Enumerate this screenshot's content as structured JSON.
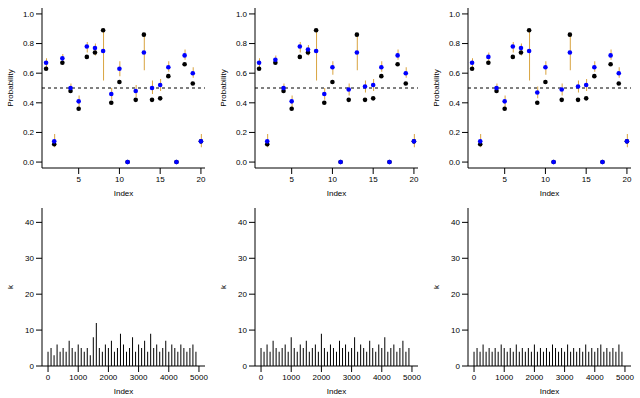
{
  "chart_data": [
    {
      "type": "scatter",
      "x_label": "Index",
      "y_label": "Probability",
      "x": [
        1,
        2,
        3,
        4,
        5,
        6,
        7,
        8,
        9,
        10,
        11,
        12,
        13,
        14,
        15,
        16,
        17,
        18,
        19,
        20
      ],
      "xlim": [
        0.5,
        20.5
      ],
      "xticks": [
        5,
        10,
        15,
        20
      ],
      "ylim": [
        -0.04,
        1.04
      ],
      "yticks": [
        {
          "value": 0,
          "label": "0.0"
        },
        {
          "value": 0.2,
          "label": "0.2"
        },
        {
          "value": 0.4,
          "label": "0.4"
        },
        {
          "value": 0.6,
          "label": "0.6"
        },
        {
          "value": 0.8,
          "label": "0.8"
        },
        {
          "value": 1,
          "label": "1.0"
        }
      ],
      "reference_line": 0.5,
      "series": [
        {
          "color": "#000000",
          "values": [
            0.63,
            0.12,
            0.67,
            0.48,
            0.36,
            0.71,
            0.74,
            0.89,
            0.4,
            0.54,
            0.0,
            0.42,
            0.86,
            0.42,
            0.43,
            0.58,
            0.0,
            0.66,
            0.53,
            0.14
          ]
        },
        {
          "color": "#0000ff",
          "values": [
            0.67,
            0.14,
            0.7,
            0.5,
            0.41,
            0.78,
            0.77,
            0.75,
            0.46,
            0.63,
            0.0,
            0.48,
            0.74,
            0.5,
            0.52,
            0.64,
            0.0,
            0.72,
            0.6,
            0.14
          ],
          "error_low": [
            0.63,
            0.1,
            0.66,
            0.47,
            0.36,
            0.74,
            0.72,
            0.55,
            0.42,
            0.58,
            0.0,
            0.44,
            0.62,
            0.46,
            0.48,
            0.61,
            0.0,
            0.69,
            0.57,
            0.1
          ],
          "error_high": [
            0.7,
            0.19,
            0.73,
            0.53,
            0.45,
            0.81,
            0.8,
            0.89,
            0.5,
            0.68,
            0.0,
            0.52,
            0.86,
            0.55,
            0.56,
            0.68,
            0.0,
            0.76,
            0.64,
            0.19
          ]
        }
      ]
    },
    {
      "type": "scatter",
      "x_label": "Index",
      "y_label": "Probability",
      "x": [
        1,
        2,
        3,
        4,
        5,
        6,
        7,
        8,
        9,
        10,
        11,
        12,
        13,
        14,
        15,
        16,
        17,
        18,
        19,
        20
      ],
      "xlim": [
        0.5,
        20.5
      ],
      "xticks": [
        5,
        10,
        15,
        20
      ],
      "ylim": [
        -0.04,
        1.04
      ],
      "yticks": [
        {
          "value": 0,
          "label": "0.0"
        },
        {
          "value": 0.2,
          "label": "0.2"
        },
        {
          "value": 0.4,
          "label": "0.4"
        },
        {
          "value": 0.6,
          "label": "0.6"
        },
        {
          "value": 0.8,
          "label": "0.8"
        },
        {
          "value": 1,
          "label": "1.0"
        }
      ],
      "reference_line": 0.5,
      "series": [
        {
          "color": "#000000",
          "values": [
            0.63,
            0.12,
            0.67,
            0.48,
            0.36,
            0.71,
            0.74,
            0.89,
            0.4,
            0.54,
            0.0,
            0.42,
            0.86,
            0.42,
            0.43,
            0.58,
            0.0,
            0.66,
            0.53,
            0.14
          ]
        },
        {
          "color": "#0000ff",
          "values": [
            0.67,
            0.14,
            0.69,
            0.5,
            0.41,
            0.78,
            0.76,
            0.75,
            0.46,
            0.64,
            0.0,
            0.49,
            0.74,
            0.51,
            0.52,
            0.64,
            0.0,
            0.72,
            0.6,
            0.14
          ],
          "error_low": [
            0.63,
            0.1,
            0.66,
            0.47,
            0.36,
            0.74,
            0.72,
            0.55,
            0.42,
            0.59,
            0.0,
            0.45,
            0.62,
            0.47,
            0.48,
            0.61,
            0.0,
            0.69,
            0.57,
            0.1
          ],
          "error_high": [
            0.7,
            0.19,
            0.72,
            0.53,
            0.45,
            0.81,
            0.79,
            0.89,
            0.5,
            0.68,
            0.0,
            0.53,
            0.86,
            0.55,
            0.56,
            0.68,
            0.0,
            0.76,
            0.64,
            0.19
          ]
        }
      ]
    },
    {
      "type": "scatter",
      "x_label": "Index",
      "y_label": "Probability",
      "x": [
        1,
        2,
        3,
        4,
        5,
        6,
        7,
        8,
        9,
        10,
        11,
        12,
        13,
        14,
        15,
        16,
        17,
        18,
        19,
        20
      ],
      "xlim": [
        0.5,
        20.5
      ],
      "xticks": [
        5,
        10,
        15,
        20
      ],
      "ylim": [
        -0.04,
        1.04
      ],
      "yticks": [
        {
          "value": 0,
          "label": "0.0"
        },
        {
          "value": 0.2,
          "label": "0.2"
        },
        {
          "value": 0.4,
          "label": "0.4"
        },
        {
          "value": 0.6,
          "label": "0.6"
        },
        {
          "value": 0.8,
          "label": "0.8"
        },
        {
          "value": 1,
          "label": "1.0"
        }
      ],
      "reference_line": 0.5,
      "series": [
        {
          "color": "#000000",
          "values": [
            0.63,
            0.12,
            0.67,
            0.48,
            0.36,
            0.71,
            0.74,
            0.89,
            0.4,
            0.54,
            0.0,
            0.42,
            0.86,
            0.42,
            0.43,
            0.58,
            0.0,
            0.66,
            0.53,
            0.14
          ]
        },
        {
          "color": "#0000ff",
          "values": [
            0.67,
            0.14,
            0.71,
            0.5,
            0.41,
            0.78,
            0.77,
            0.75,
            0.47,
            0.64,
            0.0,
            0.49,
            0.74,
            0.51,
            0.52,
            0.64,
            0.0,
            0.72,
            0.6,
            0.14
          ],
          "error_low": [
            0.63,
            0.1,
            0.67,
            0.47,
            0.36,
            0.74,
            0.72,
            0.55,
            0.43,
            0.59,
            0.0,
            0.45,
            0.62,
            0.47,
            0.48,
            0.61,
            0.0,
            0.69,
            0.57,
            0.1
          ],
          "error_high": [
            0.7,
            0.19,
            0.74,
            0.53,
            0.45,
            0.81,
            0.8,
            0.89,
            0.51,
            0.68,
            0.0,
            0.53,
            0.86,
            0.55,
            0.56,
            0.68,
            0.0,
            0.76,
            0.64,
            0.19
          ]
        }
      ]
    },
    {
      "type": "bar",
      "x_label": "Index",
      "y_label": "k",
      "color": "#000000",
      "x": [
        0,
        100,
        200,
        300,
        400,
        500,
        600,
        700,
        800,
        900,
        1000,
        1100,
        1200,
        1300,
        1400,
        1500,
        1600,
        1700,
        1800,
        1900,
        2000,
        2100,
        2200,
        2300,
        2400,
        2500,
        2600,
        2700,
        2800,
        2900,
        3000,
        3100,
        3200,
        3300,
        3400,
        3500,
        3600,
        3700,
        3800,
        3900,
        4000,
        4100,
        4200,
        4300,
        4400,
        4500,
        4600,
        4700,
        4800,
        4900
      ],
      "xlim": [
        -200,
        5200
      ],
      "xticks": [
        0,
        1000,
        2000,
        3000,
        4000,
        5000
      ],
      "ylim": [
        0,
        44
      ],
      "yticks": [
        0,
        10,
        20,
        30,
        40
      ],
      "values": [
        4,
        5,
        3,
        6,
        4,
        5,
        4,
        7,
        5,
        4,
        6,
        5,
        4,
        5,
        3,
        8,
        12,
        5,
        4,
        6,
        5,
        7,
        4,
        5,
        9,
        6,
        4,
        5,
        8,
        4,
        6,
        5,
        7,
        4,
        9,
        5,
        6,
        4,
        5,
        7,
        4,
        6,
        5,
        4,
        6,
        5,
        4,
        5,
        6,
        4
      ]
    },
    {
      "type": "bar",
      "x_label": "Index",
      "y_label": "k",
      "color": "#000000",
      "x": [
        0,
        100,
        200,
        300,
        400,
        500,
        600,
        700,
        800,
        900,
        1000,
        1100,
        1200,
        1300,
        1400,
        1500,
        1600,
        1700,
        1800,
        1900,
        2000,
        2100,
        2200,
        2300,
        2400,
        2500,
        2600,
        2700,
        2800,
        2900,
        3000,
        3100,
        3200,
        3300,
        3400,
        3500,
        3600,
        3700,
        3800,
        3900,
        4000,
        4100,
        4200,
        4300,
        4400,
        4500,
        4600,
        4700,
        4800,
        4900
      ],
      "xlim": [
        -200,
        5200
      ],
      "xticks": [
        0,
        1000,
        2000,
        3000,
        4000,
        5000
      ],
      "ylim": [
        0,
        44
      ],
      "yticks": [
        0,
        10,
        20,
        30,
        40
      ],
      "values": [
        5,
        4,
        6,
        4,
        7,
        5,
        4,
        5,
        6,
        4,
        8,
        5,
        4,
        6,
        5,
        7,
        4,
        5,
        6,
        4,
        9,
        5,
        4,
        6,
        5,
        4,
        7,
        5,
        6,
        4,
        5,
        8,
        4,
        6,
        5,
        4,
        7,
        5,
        4,
        6,
        5,
        8,
        4,
        5,
        6,
        4,
        5,
        7,
        4,
        5
      ]
    },
    {
      "type": "bar",
      "x_label": "Index",
      "y_label": "k",
      "color": "#000000",
      "x": [
        0,
        100,
        200,
        300,
        400,
        500,
        600,
        700,
        800,
        900,
        1000,
        1100,
        1200,
        1300,
        1400,
        1500,
        1600,
        1700,
        1800,
        1900,
        2000,
        2100,
        2200,
        2300,
        2400,
        2500,
        2600,
        2700,
        2800,
        2900,
        3000,
        3100,
        3200,
        3300,
        3400,
        3500,
        3600,
        3700,
        3800,
        3900,
        4000,
        4100,
        4200,
        4300,
        4400,
        4500,
        4600,
        4700,
        4800,
        4900
      ],
      "xlim": [
        -200,
        5200
      ],
      "xticks": [
        0,
        1000,
        2000,
        3000,
        4000,
        5000
      ],
      "ylim": [
        0,
        44
      ],
      "yticks": [
        0,
        10,
        20,
        30,
        40
      ],
      "values": [
        4,
        5,
        4,
        6,
        4,
        5,
        4,
        5,
        4,
        6,
        5,
        4,
        5,
        4,
        6,
        4,
        5,
        4,
        5,
        4,
        6,
        4,
        5,
        4,
        5,
        4,
        6,
        5,
        4,
        5,
        4,
        6,
        4,
        5,
        4,
        5,
        4,
        6,
        4,
        5,
        4,
        5,
        6,
        4,
        5,
        4,
        5,
        4,
        6,
        4
      ]
    }
  ]
}
